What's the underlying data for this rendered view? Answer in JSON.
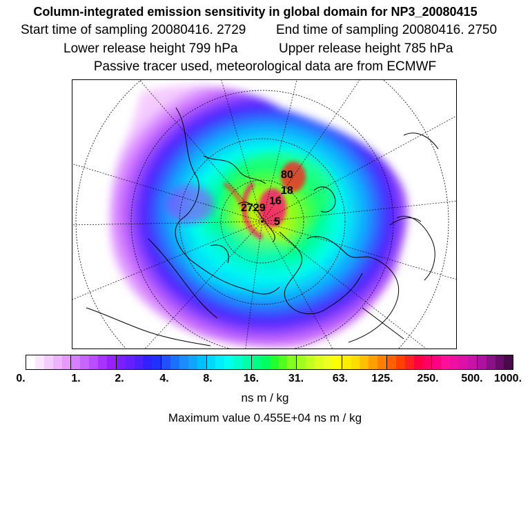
{
  "header": {
    "title": "Column-integrated emission sensitivity in global domain for NP3_20080415",
    "start_time": "Start time of sampling 20080416.  2729",
    "end_time": "End time of sampling 20080416.  2750",
    "lower_release": "Lower release height  799 hPa",
    "upper_release": "Upper release height  785 hPa",
    "tracer_note": "Passive tracer used, meteorological data are from ECMWF"
  },
  "map": {
    "projection": "polar-stereographic-north",
    "contour_labels": [
      "80",
      "2729",
      "16",
      "18",
      "5"
    ]
  },
  "colorbar": {
    "colors": [
      "#ffffff",
      "#fbe6ff",
      "#f5ccff",
      "#eeb3ff",
      "#e699ff",
      "#d580ff",
      "#c766ff",
      "#b94dff",
      "#a833ff",
      "#9620ff",
      "#7a1fff",
      "#6620ff",
      "#4d20ff",
      "#3320ff",
      "#2030ff",
      "#2050ff",
      "#1a70ff",
      "#1a8cff",
      "#10a6ff",
      "#00c0ff",
      "#00d8ff",
      "#00eeff",
      "#00ffee",
      "#00ffcc",
      "#00ffaa",
      "#00ff88",
      "#00ff60",
      "#20ff30",
      "#50ff20",
      "#80ff20",
      "#a0ff20",
      "#c0ff20",
      "#ddff20",
      "#eeff20",
      "#ffff00",
      "#ffee00",
      "#ffdd00",
      "#ffc000",
      "#ffa000",
      "#ff8000",
      "#ff6000",
      "#ff4000",
      "#ff2020",
      "#ff0040",
      "#ff0066",
      "#ff0080",
      "#ff1099",
      "#ee10a0",
      "#dd10aa",
      "#cc10aa",
      "#b010a0",
      "#8a1088",
      "#6a0a6a",
      "#4a0a4a"
    ],
    "tick_labels": [
      "0.",
      "1.",
      "2.",
      "4.",
      "8.",
      "16.",
      "31.",
      "63.",
      "125.",
      "250.",
      "500.",
      "1000."
    ]
  },
  "unit_label": "ns m / kg",
  "max_value_label": "Maximum value  0.455E+04 ns m / kg"
}
